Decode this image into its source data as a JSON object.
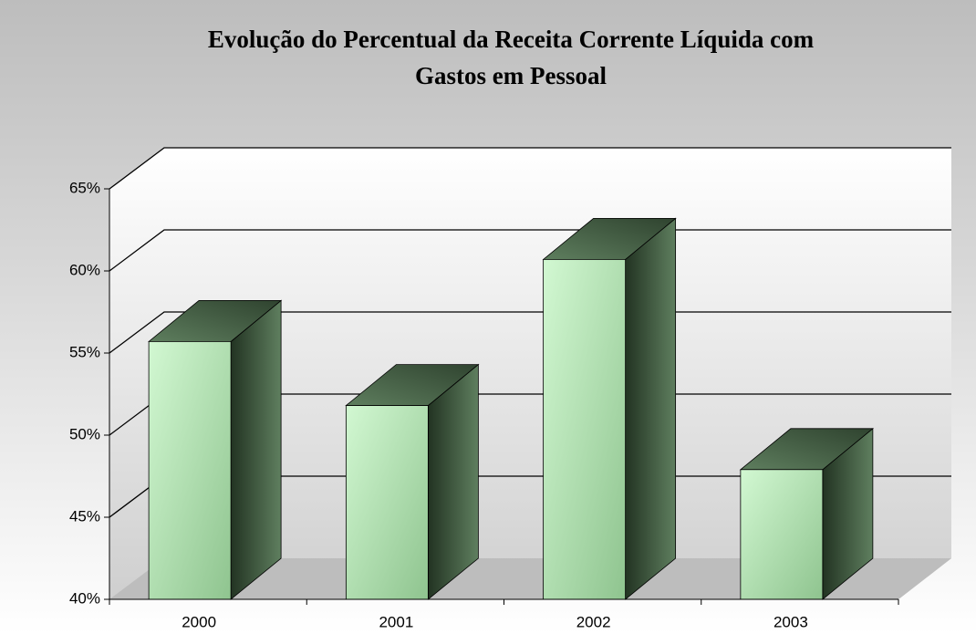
{
  "chart_data": {
    "type": "bar3d",
    "title": [
      "Evolução do Percentual da Receita Corrente Líquida com",
      "Gastos em Pessoal"
    ],
    "categories": [
      "2000",
      "2001",
      "2002",
      "2003"
    ],
    "values": [
      55.7,
      51.8,
      60.7,
      47.9
    ],
    "color": "#b8ecb8",
    "ylim": [
      40,
      65
    ],
    "yticks": [
      {
        "value": 40,
        "label": "40%"
      },
      {
        "value": 45,
        "label": "45%"
      },
      {
        "value": 50,
        "label": "50%"
      },
      {
        "value": 55,
        "label": "55%"
      },
      {
        "value": 60,
        "label": "60%"
      },
      {
        "value": 65,
        "label": "65%"
      }
    ],
    "grid": true
  }
}
